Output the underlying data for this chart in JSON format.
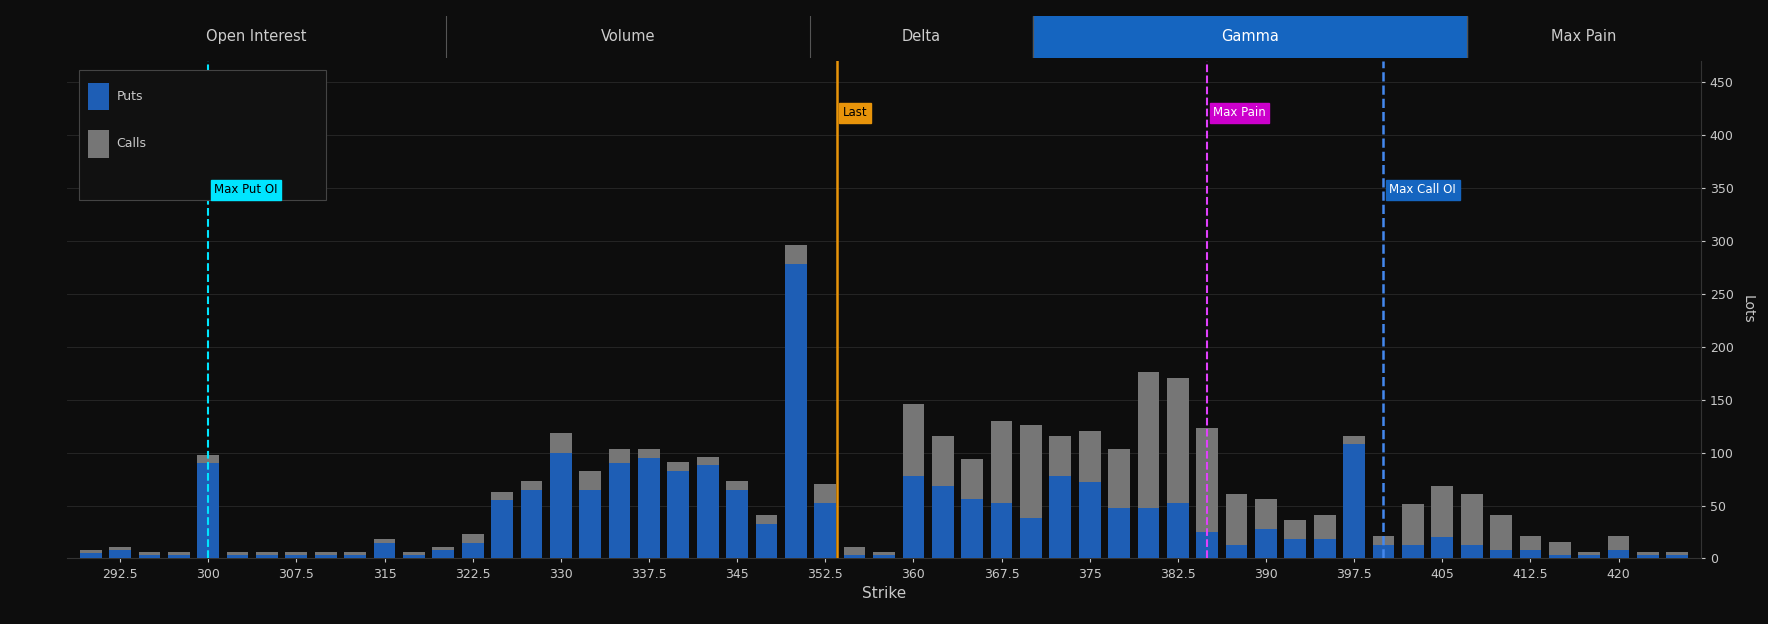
{
  "strikes": [
    290,
    292.5,
    295,
    297.5,
    300,
    302.5,
    305,
    307.5,
    310,
    312.5,
    315,
    317.5,
    320,
    322.5,
    325,
    327.5,
    330,
    332.5,
    335,
    337.5,
    340,
    342.5,
    345,
    347.5,
    350,
    352.5,
    355,
    357.5,
    360,
    362.5,
    365,
    367.5,
    370,
    372.5,
    375,
    377.5,
    380,
    382.5,
    385,
    387.5,
    390,
    392.5,
    395,
    397.5,
    400,
    402.5,
    405,
    407.5,
    410,
    412.5,
    415,
    417.5,
    420,
    422.5,
    425
  ],
  "puts": [
    5,
    8,
    3,
    3,
    90,
    3,
    3,
    3,
    3,
    3,
    15,
    3,
    8,
    15,
    55,
    65,
    100,
    65,
    90,
    95,
    83,
    88,
    65,
    33,
    278,
    52,
    3,
    3,
    78,
    68,
    56,
    52,
    38,
    78,
    72,
    48,
    48,
    52,
    25,
    13,
    28,
    18,
    18,
    108,
    13,
    13,
    20,
    13,
    8,
    8,
    3,
    3,
    8,
    3,
    3
  ],
  "calls": [
    3,
    3,
    3,
    3,
    8,
    3,
    3,
    3,
    3,
    3,
    3,
    3,
    3,
    8,
    8,
    8,
    18,
    18,
    13,
    8,
    8,
    8,
    8,
    8,
    18,
    18,
    8,
    3,
    68,
    48,
    38,
    78,
    88,
    38,
    48,
    55,
    128,
    118,
    98,
    48,
    28,
    18,
    23,
    8,
    8,
    38,
    48,
    48,
    33,
    13,
    13,
    3,
    13,
    3,
    3
  ],
  "puts_color": "#1e5eb5",
  "calls_color": "#767676",
  "bg_color": "#0d0d0d",
  "grid_color": "#252525",
  "text_color": "#c8c8c8",
  "header_bg": "#1c1c1c",
  "header_text": "#cccccc",
  "gamma_header_bg": "#1565c0",
  "gamma_header_text": "#ffffff",
  "last_line_x": 353.5,
  "last_line_color": "#e8940a",
  "last_label_bg": "#e8940a",
  "last_label_text": "#000000",
  "max_put_oi_x": 300,
  "max_put_oi_color": "#00e5ff",
  "max_put_oi_label_bg": "#00e5ff",
  "max_put_oi_label_text": "#000000",
  "max_pain_x": 385,
  "max_pain_color": "#e040fb",
  "max_pain_label_bg": "#cc00cc",
  "max_pain_label_text": "#ffffff",
  "max_call_oi_x": 400,
  "max_call_oi_color": "#4488ee",
  "max_call_oi_label_bg": "#1565c0",
  "max_call_oi_label_text": "#ffffff",
  "xlabel": "Strike",
  "ylabel": "Lots",
  "ylim": [
    0,
    470
  ],
  "bar_width": 1.85,
  "xtick_positions": [
    292.5,
    300,
    307.5,
    315,
    322.5,
    330,
    337.5,
    345,
    352.5,
    360,
    367.5,
    375,
    382.5,
    390,
    397.5,
    405,
    412.5,
    420
  ],
  "yticks": [
    0,
    50,
    100,
    150,
    200,
    250,
    300,
    350,
    400,
    450
  ],
  "sections": [
    {
      "name": "Open Interest",
      "xmin": 0.0,
      "xmax": 0.232
    },
    {
      "name": "Volume",
      "xmin": 0.232,
      "xmax": 0.455
    },
    {
      "name": "Delta",
      "xmin": 0.455,
      "xmax": 0.591
    },
    {
      "name": "Gamma",
      "xmin": 0.591,
      "xmax": 0.857
    },
    {
      "name": "Max Pain",
      "xmin": 0.857,
      "xmax": 1.0
    }
  ]
}
